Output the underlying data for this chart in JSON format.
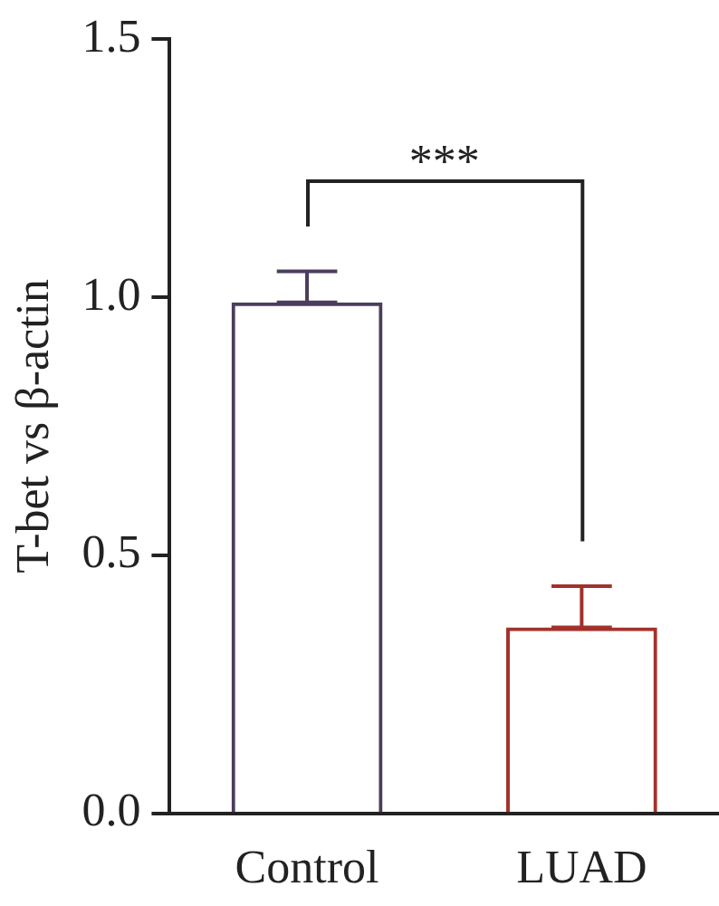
{
  "chart_data": {
    "type": "bar",
    "ylabel": "T-bet vs β-actin",
    "categories": [
      "Control",
      "LUAD"
    ],
    "values": [
      0.99,
      0.36
    ],
    "colors": [
      "#4b3d5c",
      "#a3312b"
    ],
    "errors": [
      [
        0.99,
        1.05
      ],
      [
        0.36,
        0.44
      ]
    ],
    "ylim": [
      0,
      1.5
    ],
    "yticks": [
      {
        "value": 0,
        "label": "0.0"
      },
      {
        "value": 0.5,
        "label": "0.5"
      },
      {
        "value": 1,
        "label": "1.0"
      },
      {
        "value": 1.5,
        "label": "1.5"
      }
    ],
    "grid": false,
    "legend": false,
    "annotations": [
      "***"
    ]
  }
}
